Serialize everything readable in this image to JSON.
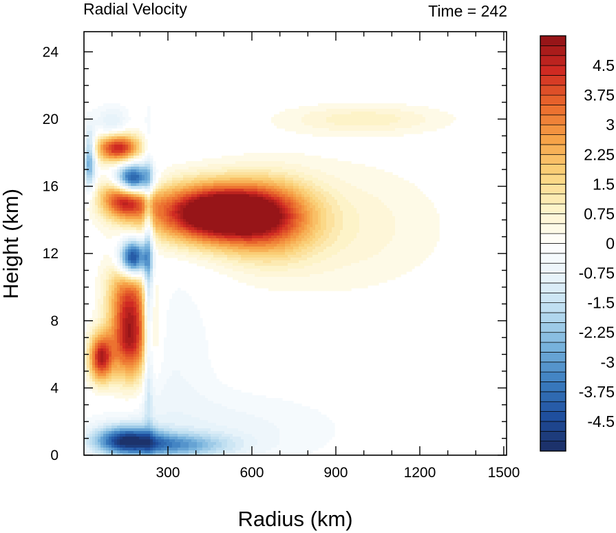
{
  "chart_data": {
    "type": "heatmap",
    "title_left": "Radial Velocity",
    "title_right": "Time = 242",
    "xlabel": "Radius (km)",
    "ylabel": "Height (km)",
    "xlim": [
      0,
      1510
    ],
    "ylim": [
      0,
      25.2
    ],
    "xticks": [
      300,
      600,
      900,
      1200,
      1500
    ],
    "yticks": [
      0,
      4,
      8,
      12,
      16,
      20,
      24
    ],
    "colorbar": {
      "vmin": -5.25,
      "vmax": 5.25,
      "step": 0.25,
      "labels": [
        "4.5",
        "3.75",
        "3",
        "2.25",
        "1.5",
        "0.75",
        "0",
        "-0.75",
        "-1.5",
        "-2.25",
        "-3",
        "-3.75",
        "-4.5"
      ],
      "label_values": [
        4.5,
        3.75,
        3,
        2.25,
        1.5,
        0.75,
        0,
        -0.75,
        -1.5,
        -2.25,
        -3,
        -3.75,
        -4.5
      ],
      "colormap": [
        "#1b2d63",
        "#1f4f9e",
        "#3b7ec0",
        "#77b2dc",
        "#b9dcf0",
        "#e7f3fa",
        "#ffffff",
        "#fdf3c8",
        "#fbd47c",
        "#f6a348",
        "#ea6a2c",
        "#cf2a22",
        "#8e1116"
      ]
    },
    "features": [
      {
        "kind": "outflow",
        "x": 470,
        "y": 14.4,
        "sx": 160,
        "sy": 1.2,
        "v": 6.5
      },
      {
        "kind": "outflow",
        "x": 660,
        "y": 14.0,
        "sx": 120,
        "sy": 1.6,
        "v": 2.5
      },
      {
        "kind": "outflow",
        "x": 900,
        "y": 13.6,
        "sx": 260,
        "sy": 2.6,
        "v": 0.7
      },
      {
        "kind": "outflow",
        "x": 1000,
        "y": 20.0,
        "sx": 200,
        "sy": 0.6,
        "v": 0.9
      },
      {
        "kind": "outflow",
        "x": 120,
        "y": 18.3,
        "sx": 55,
        "sy": 0.6,
        "v": 4.8
      },
      {
        "kind": "outflow",
        "x": 150,
        "y": 15.3,
        "sx": 60,
        "sy": 0.8,
        "v": 5.0
      },
      {
        "kind": "outflow",
        "x": 165,
        "y": 7.0,
        "sx": 50,
        "sy": 1.8,
        "v": 5.0
      },
      {
        "kind": "outflow",
        "x": 60,
        "y": 5.8,
        "sx": 30,
        "sy": 1.0,
        "v": 4.5
      },
      {
        "kind": "outflow",
        "x": 160,
        "y": 10.0,
        "sx": 55,
        "sy": 1.4,
        "v": 2.5
      },
      {
        "kind": "inflow",
        "x": 175,
        "y": 16.3,
        "sx": 45,
        "sy": 0.7,
        "v": -6.0
      },
      {
        "kind": "inflow",
        "x": 175,
        "y": 11.7,
        "sx": 35,
        "sy": 0.8,
        "v": -5.5
      },
      {
        "kind": "inflow",
        "x": 150,
        "y": 0.9,
        "sx": 80,
        "sy": 0.6,
        "v": -4.0
      },
      {
        "kind": "inflow",
        "x": 320,
        "y": 0.6,
        "sx": 140,
        "sy": 0.5,
        "v": -2.5
      },
      {
        "kind": "inflow",
        "x": 500,
        "y": 1.5,
        "sx": 300,
        "sy": 1.6,
        "v": -0.6
      },
      {
        "kind": "inflow",
        "x": 300,
        "y": 6.0,
        "sx": 120,
        "sy": 4.0,
        "v": -0.5
      },
      {
        "kind": "inflow",
        "x": 230,
        "y": 10.0,
        "sx": 12,
        "sy": 5.0,
        "v": -2.5
      },
      {
        "kind": "inflow",
        "x": 20,
        "y": 17.6,
        "sx": 15,
        "sy": 1.2,
        "v": -3.0
      },
      {
        "kind": "inflow",
        "x": 100,
        "y": 19.6,
        "sx": 40,
        "sy": 0.8,
        "v": -1.2
      }
    ]
  }
}
